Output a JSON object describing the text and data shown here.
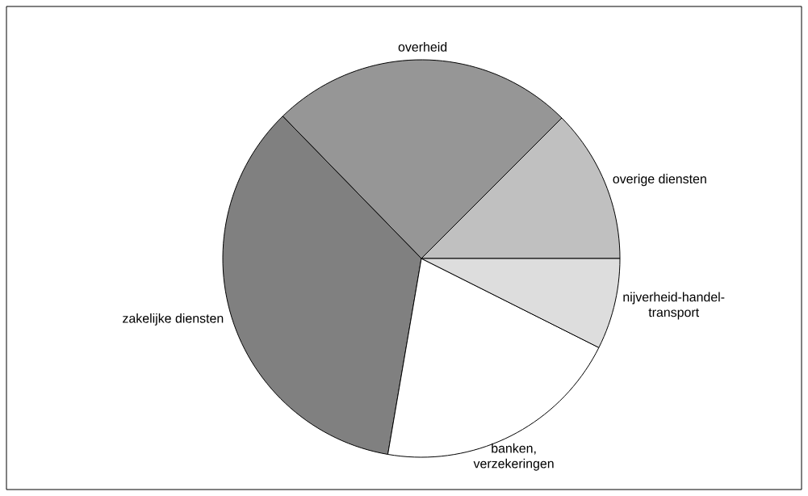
{
  "chart_data": {
    "type": "pie",
    "categories": [
      "overige diensten",
      "overheid",
      "zakelijke diensten",
      "banken, verzekeringen",
      "nijverheid-handel-transport"
    ],
    "values": [
      12.5,
      24.8,
      35.0,
      20.3,
      7.4
    ],
    "colors": [
      "#c0c0c0",
      "#969696",
      "#808080",
      "#ffffff",
      "#dddddd"
    ]
  }
}
